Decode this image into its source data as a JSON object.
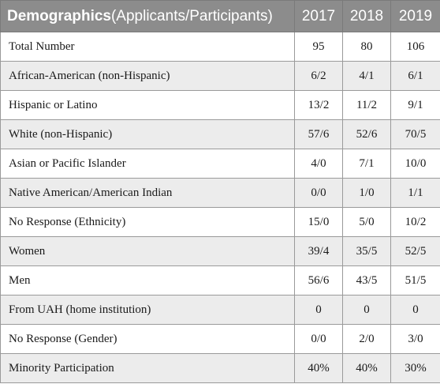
{
  "header": {
    "title_bold": "Demographics",
    "title_rest": "(Applicants/Participants)",
    "years": [
      "2017",
      "2018",
      "2019"
    ]
  },
  "rows": [
    {
      "label": "Total Number",
      "values": [
        "95",
        "80",
        "106"
      ]
    },
    {
      "label": "African-American (non-Hispanic)",
      "values": [
        "6/2",
        "4/1",
        "6/1"
      ]
    },
    {
      "label": "Hispanic or Latino",
      "values": [
        "13/2",
        "11/2",
        "9/1"
      ]
    },
    {
      "label": "White (non-Hispanic)",
      "values": [
        "57/6",
        "52/6",
        "70/5"
      ]
    },
    {
      "label": "Asian or Pacific Islander",
      "values": [
        "4/0",
        "7/1",
        "10/0"
      ]
    },
    {
      "label": "Native American/American Indian",
      "values": [
        "0/0",
        "1/0",
        "1/1"
      ]
    },
    {
      "label": "No Response (Ethnicity)",
      "values": [
        "15/0",
        "5/0",
        "10/2"
      ]
    },
    {
      "label": "Women",
      "values": [
        "39/4",
        "35/5",
        "52/5"
      ]
    },
    {
      "label": "Men",
      "values": [
        "56/6",
        "43/5",
        "51/5"
      ]
    },
    {
      "label": "From UAH (home institution)",
      "values": [
        "0",
        "0",
        "0"
      ]
    },
    {
      "label": "No Response (Gender)",
      "values": [
        "0/0",
        "2/0",
        "3/0"
      ]
    },
    {
      "label": "Minority Participation",
      "values": [
        "40%",
        "40%",
        "30%"
      ]
    }
  ]
}
